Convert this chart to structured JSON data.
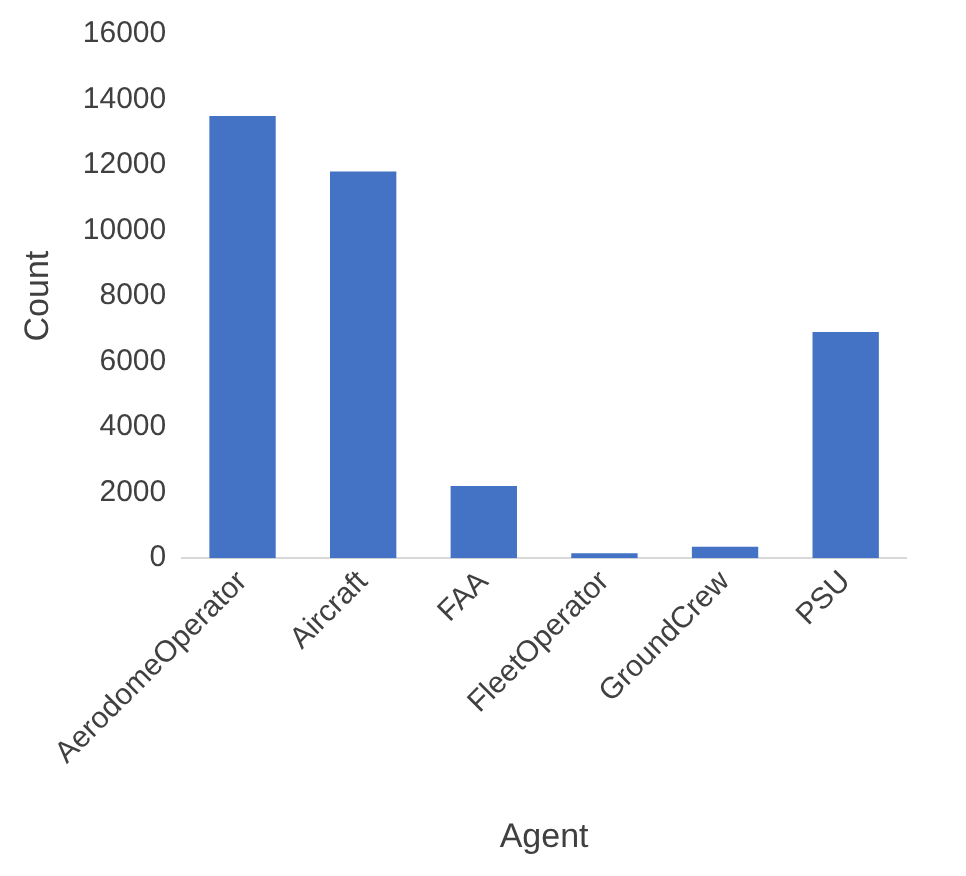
{
  "chart_data": {
    "type": "bar",
    "xlabel": "Agent",
    "ylabel": "Count",
    "categories": [
      "AerodomeOperator",
      "Aircraft",
      "FAA",
      "FleetOperator",
      "GroundCrew",
      "PSU"
    ],
    "values": [
      13500,
      11800,
      2200,
      150,
      350,
      6900
    ],
    "color": "#4472c4",
    "ylim": [
      0,
      16000
    ],
    "yticks": [
      0,
      2000,
      4000,
      6000,
      8000,
      10000,
      12000,
      14000,
      16000
    ],
    "grid": false,
    "legend": false
  }
}
